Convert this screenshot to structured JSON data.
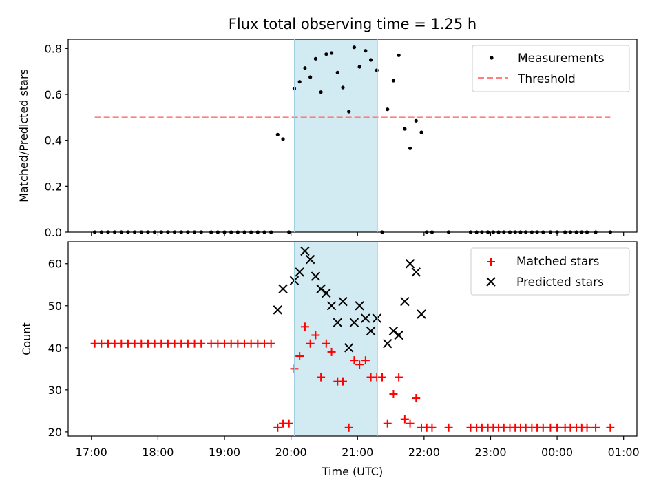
{
  "chart_data": [
    {
      "type": "scatter",
      "title": "Flux total observing time = 1.25 h",
      "xlabel": "",
      "ylabel": "Matched/Predicted stars",
      "xlim": [
        16.65,
        25.2
      ],
      "ylim": [
        0.0,
        0.84
      ],
      "yticks": [
        0.0,
        0.2,
        0.4,
        0.6,
        0.8
      ],
      "ytick_labels": [
        "0.0",
        "0.2",
        "0.4",
        "0.6",
        "0.8"
      ],
      "shaded_x_range": [
        20.05,
        21.3
      ],
      "shaded_color": "#add8e6",
      "legend_position": "top-right",
      "series": [
        {
          "name": "Measurements",
          "marker": "dot",
          "color": "#000000",
          "x": [
            17.05,
            17.15,
            17.25,
            17.35,
            17.45,
            17.55,
            17.65,
            17.75,
            17.85,
            17.95,
            18.05,
            18.15,
            18.25,
            18.35,
            18.45,
            18.55,
            18.65,
            18.8,
            18.9,
            19.0,
            19.1,
            19.2,
            19.3,
            19.4,
            19.5,
            19.6,
            19.7,
            19.8,
            19.88,
            19.97,
            20.05,
            20.13,
            20.21,
            20.29,
            20.37,
            20.45,
            20.53,
            20.61,
            20.7,
            20.78,
            20.87,
            20.95,
            21.03,
            21.12,
            21.2,
            21.29,
            21.37,
            21.45,
            21.54,
            21.62,
            21.71,
            21.79,
            21.88,
            21.96,
            22.04,
            22.12,
            22.37,
            22.7,
            22.79,
            22.87,
            22.96,
            23.04,
            23.12,
            23.2,
            23.29,
            23.37,
            23.45,
            23.53,
            23.62,
            23.7,
            23.79,
            23.9,
            24.0,
            24.12,
            24.2,
            24.29,
            24.37,
            24.45,
            24.58,
            24.8
          ],
          "y": [
            0,
            0,
            0,
            0,
            0,
            0,
            0,
            0,
            0,
            0,
            0,
            0,
            0,
            0,
            0,
            0,
            0,
            0,
            0,
            0,
            0,
            0,
            0,
            0,
            0,
            0,
            0,
            0.425,
            0.405,
            0,
            0.625,
            0.655,
            0.715,
            0.675,
            0.755,
            0.61,
            0.775,
            0.78,
            0.695,
            0.63,
            0.525,
            0.805,
            0.72,
            0.79,
            0.75,
            0.705,
            0,
            0.535,
            0.66,
            0.77,
            0.45,
            0.365,
            0.485,
            0.435,
            0,
            0,
            0,
            0,
            0,
            0,
            0,
            0,
            0,
            0,
            0,
            0,
            0,
            0,
            0,
            0,
            0,
            0,
            0,
            0,
            0,
            0,
            0,
            0,
            0,
            0
          ]
        },
        {
          "name": "Threshold",
          "marker": "dashed-line",
          "color": "#ff7f7f",
          "x": [
            17.05,
            24.8
          ],
          "y": [
            0.5,
            0.5
          ]
        }
      ]
    },
    {
      "type": "scatter",
      "title": "",
      "xlabel": "Time (UTC)",
      "ylabel": "Count",
      "xlim": [
        16.65,
        25.2
      ],
      "ylim": [
        19.0,
        65.2
      ],
      "yticks": [
        20,
        30,
        40,
        50,
        60
      ],
      "ytick_labels": [
        "20",
        "30",
        "40",
        "50",
        "60"
      ],
      "xticks": [
        17,
        18,
        19,
        20,
        21,
        22,
        23,
        24,
        25
      ],
      "xtick_labels": [
        "17:00",
        "18:00",
        "19:00",
        "20:00",
        "21:00",
        "22:00",
        "23:00",
        "00:00",
        "01:00"
      ],
      "shaded_x_range": [
        20.05,
        21.3
      ],
      "shaded_color": "#add8e6",
      "legend_position": "top-right",
      "series": [
        {
          "name": "Matched stars",
          "marker": "plus",
          "color": "#ff0000",
          "x": [
            17.05,
            17.15,
            17.25,
            17.35,
            17.45,
            17.55,
            17.65,
            17.75,
            17.85,
            17.95,
            18.05,
            18.15,
            18.25,
            18.35,
            18.45,
            18.55,
            18.65,
            18.8,
            18.9,
            19.0,
            19.1,
            19.2,
            19.3,
            19.4,
            19.5,
            19.6,
            19.7,
            19.8,
            19.88,
            19.97,
            20.05,
            20.13,
            20.21,
            20.29,
            20.37,
            20.45,
            20.53,
            20.61,
            20.7,
            20.78,
            20.87,
            20.95,
            21.03,
            21.12,
            21.2,
            21.29,
            21.37,
            21.45,
            21.54,
            21.62,
            21.71,
            21.79,
            21.88,
            21.96,
            22.04,
            22.12,
            22.37,
            22.7,
            22.79,
            22.87,
            22.96,
            23.04,
            23.12,
            23.2,
            23.29,
            23.37,
            23.45,
            23.53,
            23.62,
            23.7,
            23.79,
            23.9,
            24.0,
            24.12,
            24.2,
            24.29,
            24.37,
            24.45,
            24.58,
            24.8
          ],
          "y": [
            41,
            41,
            41,
            41,
            41,
            41,
            41,
            41,
            41,
            41,
            41,
            41,
            41,
            41,
            41,
            41,
            41,
            41,
            41,
            41,
            41,
            41,
            41,
            41,
            41,
            41,
            41,
            21,
            22,
            22,
            35,
            38,
            45,
            41,
            43,
            33,
            41,
            39,
            32,
            32,
            21,
            37,
            36,
            37,
            33,
            33,
            33,
            22,
            29,
            33,
            23,
            22,
            28,
            21,
            21,
            21,
            21,
            21,
            21,
            21,
            21,
            21,
            21,
            21,
            21,
            21,
            21,
            21,
            21,
            21,
            21,
            21,
            21,
            21,
            21,
            21,
            21,
            21,
            21,
            21
          ]
        },
        {
          "name": "Predicted stars",
          "marker": "x",
          "color": "#000000",
          "x": [
            19.8,
            19.88,
            20.05,
            20.13,
            20.21,
            20.29,
            20.37,
            20.45,
            20.53,
            20.61,
            20.7,
            20.78,
            20.87,
            20.95,
            21.03,
            21.12,
            21.2,
            21.29,
            21.45,
            21.54,
            21.62,
            21.71,
            21.79,
            21.88,
            21.96
          ],
          "y": [
            49,
            54,
            56,
            58,
            63,
            61,
            57,
            54,
            53,
            50,
            46,
            51,
            40,
            46,
            50,
            47,
            44,
            47,
            41,
            44,
            43,
            51,
            60,
            58,
            48
          ]
        }
      ]
    }
  ]
}
